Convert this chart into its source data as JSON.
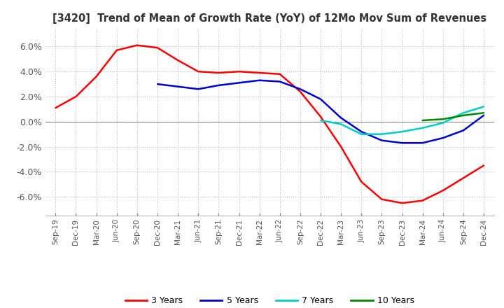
{
  "title": "[3420]  Trend of Mean of Growth Rate (YoY) of 12Mo Mov Sum of Revenues",
  "ylim": [
    -0.075,
    0.075
  ],
  "yticks": [
    -0.06,
    -0.04,
    -0.02,
    0.0,
    0.02,
    0.04,
    0.06
  ],
  "ytick_labels": [
    "-6.0%",
    "-4.0%",
    "-2.0%",
    "0.0%",
    "2.0%",
    "4.0%",
    "6.0%"
  ],
  "line_colors": [
    "#ff0000",
    "#0000cc",
    "#00cccc",
    "#008800"
  ],
  "line_labels": [
    "3 Years",
    "5 Years",
    "7 Years",
    "10 Years"
  ],
  "background_color": "#ffffff",
  "grid_color": "#bbbbbb",
  "x_labels": [
    "Sep-19",
    "Dec-19",
    "Mar-20",
    "Jun-20",
    "Sep-20",
    "Dec-20",
    "Mar-21",
    "Jun-21",
    "Sep-21",
    "Dec-21",
    "Mar-22",
    "Jun-22",
    "Sep-22",
    "Dec-22",
    "Mar-23",
    "Jun-23",
    "Sep-23",
    "Dec-23",
    "Mar-24",
    "Jun-24",
    "Sep-24",
    "Dec-24"
  ],
  "series_3y": [
    0.011,
    0.02,
    0.036,
    0.057,
    0.061,
    0.059,
    0.049,
    0.04,
    0.039,
    0.04,
    0.039,
    0.038,
    0.024,
    0.004,
    -0.02,
    -0.048,
    -0.062,
    -0.065,
    -0.063,
    -0.055,
    -0.045,
    -0.035
  ],
  "series_5y": [
    null,
    null,
    null,
    null,
    null,
    0.03,
    0.028,
    0.026,
    0.029,
    0.031,
    0.033,
    0.032,
    0.026,
    0.018,
    0.003,
    -0.008,
    -0.015,
    -0.017,
    -0.017,
    -0.013,
    -0.007,
    0.005
  ],
  "series_7y": [
    null,
    null,
    null,
    null,
    null,
    null,
    null,
    null,
    null,
    null,
    null,
    null,
    null,
    0.001,
    -0.002,
    -0.01,
    -0.01,
    -0.008,
    -0.005,
    -0.001,
    0.007,
    0.012
  ],
  "series_10y": [
    null,
    null,
    null,
    null,
    null,
    null,
    null,
    null,
    null,
    null,
    null,
    null,
    null,
    null,
    null,
    null,
    null,
    null,
    0.001,
    0.002,
    0.005,
    0.007
  ]
}
